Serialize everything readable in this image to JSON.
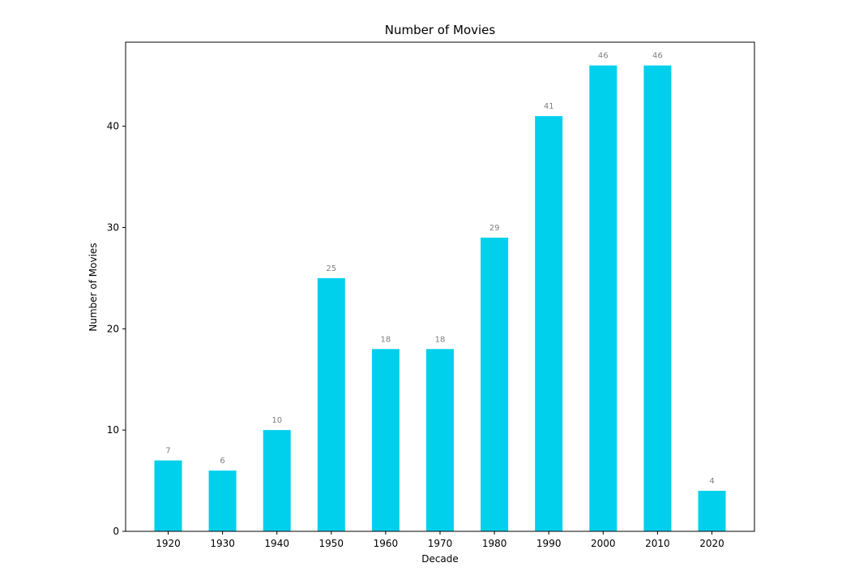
{
  "chart_data": {
    "type": "bar",
    "title": "Number of Movies",
    "xlabel": "Decade",
    "ylabel": "Number of Movies",
    "categories": [
      "1920",
      "1930",
      "1940",
      "1950",
      "1960",
      "1970",
      "1980",
      "1990",
      "2000",
      "2010",
      "2020"
    ],
    "values": [
      7,
      6,
      10,
      25,
      18,
      18,
      29,
      41,
      46,
      46,
      4
    ],
    "data_labels": [
      "7",
      "6",
      "10",
      "25",
      "18",
      "18",
      "29",
      "41",
      "46",
      "46",
      "4"
    ],
    "ylim": [
      0,
      48.3
    ],
    "yticks": [
      0,
      10,
      20,
      30,
      40
    ],
    "ytick_labels": [
      "0",
      "10",
      "20",
      "30",
      "40"
    ],
    "grid": false,
    "legend": "none",
    "colors": {
      "bar": "#00d0ec",
      "data_label": "#808080",
      "axis": "#000000"
    }
  }
}
